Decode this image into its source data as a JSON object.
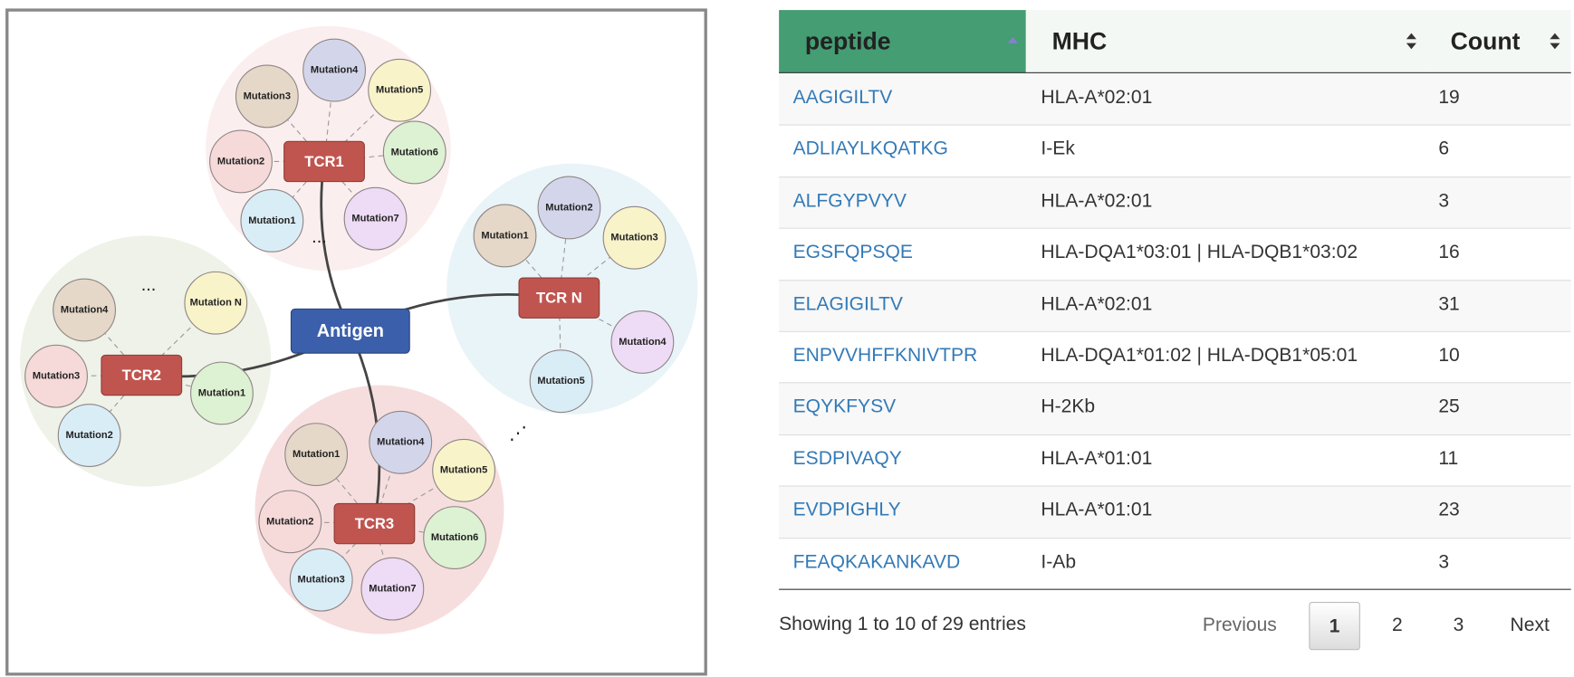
{
  "diagram": {
    "center": "Antigen",
    "clusters": [
      {
        "label": "TCR1",
        "mutations": [
          "Mutation1",
          "Mutation2",
          "Mutation3",
          "Mutation4",
          "Mutation5",
          "Mutation6",
          "Mutation7"
        ],
        "more": "..."
      },
      {
        "label": "TCR2",
        "mutations": [
          "Mutation1",
          "Mutation2",
          "Mutation3",
          "Mutation4",
          "Mutation N"
        ],
        "more": "..."
      },
      {
        "label": "TCR3",
        "mutations": [
          "Mutation1",
          "Mutation2",
          "Mutation3",
          "Mutation4",
          "Mutation5",
          "Mutation6",
          "Mutation7"
        ]
      },
      {
        "label": "TCR N",
        "mutations": [
          "Mutation1",
          "Mutation2",
          "Mutation3",
          "Mutation4",
          "Mutation5"
        ]
      }
    ],
    "more": "⋰"
  },
  "table": {
    "columns": [
      "peptide",
      "MHC",
      "Count"
    ],
    "rows": [
      [
        "AAGIGILTV",
        "HLA-A*02:01",
        19
      ],
      [
        "ADLIAYLKQATKG",
        "I-Ek",
        6
      ],
      [
        "ALFGYPVYV",
        "HLA-A*02:01",
        3
      ],
      [
        "EGSFQPSQE",
        "HLA-DQA1*03:01 | HLA-DQB1*03:02",
        16
      ],
      [
        "ELAGIGILTV",
        "HLA-A*02:01",
        31
      ],
      [
        "ENPVVHFFKNIVTPR",
        "HLA-DQA1*01:02 | HLA-DQB1*05:01",
        10
      ],
      [
        "EQYKFYSV",
        "H-2Kb",
        25
      ],
      [
        "ESDPIVAQY",
        "HLA-A*01:01",
        11
      ],
      [
        "EVDPIGHLY",
        "HLA-A*01:01",
        23
      ],
      [
        "FEAQKAKANKAVD",
        "I-Ab",
        3
      ]
    ]
  },
  "footer": {
    "info": "Showing 1 to 10 of 29 entries",
    "pagination": [
      "Previous",
      "1",
      "2",
      "3",
      "Next"
    ]
  }
}
